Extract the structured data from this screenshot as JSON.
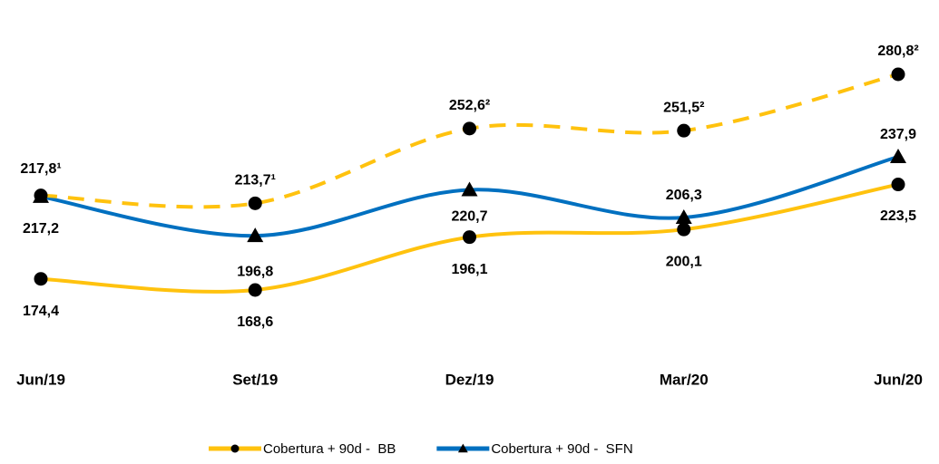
{
  "chart_data": {
    "type": "line",
    "categories": [
      "Jun/19",
      "Set/19",
      "Dez/19",
      "Mar/20",
      "Jun/20"
    ],
    "series": [
      {
        "name": "Cobertura + 90d -  BB",
        "color": "#FFC20E",
        "marker": "circle",
        "style": "solid",
        "values": [
          174.4,
          168.6,
          196.1,
          200.1,
          223.5
        ],
        "value_labels": [
          "174,4",
          "168,6",
          "196,1",
          "200,1",
          "223,5"
        ]
      },
      {
        "name": "Cobertura + 90d -  SFN",
        "color": "#0070C0",
        "marker": "triangle",
        "style": "solid",
        "values": [
          217.2,
          196.8,
          220.7,
          206.3,
          237.9
        ],
        "value_labels": [
          "217,2",
          "196,8",
          "220,7",
          "206,3",
          "237,9"
        ]
      },
      {
        "color": "#FFC20E",
        "marker": "circle",
        "style": "dashed",
        "values": [
          217.8,
          213.7,
          252.6,
          251.5,
          280.8
        ],
        "value_labels": [
          "217,8¹",
          "213,7¹",
          "252,6²",
          "251,5²",
          "280,8²"
        ]
      }
    ],
    "legend": "bottom"
  }
}
